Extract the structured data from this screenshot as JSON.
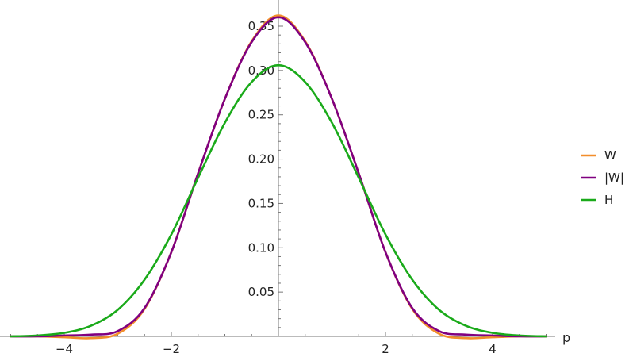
{
  "chart_data": {
    "type": "line",
    "xlabel": "p",
    "ylabel": "",
    "xlim": [
      -5,
      5
    ],
    "ylim": [
      0,
      0.37
    ],
    "x_ticks": [
      {
        "value": -4,
        "label": "−4"
      },
      {
        "value": -2,
        "label": "−2"
      },
      {
        "value": 2,
        "label": "2"
      },
      {
        "value": 4,
        "label": "4"
      }
    ],
    "y_ticks": [
      {
        "value": 0.05,
        "label": "0.05"
      },
      {
        "value": 0.1,
        "label": "0.10"
      },
      {
        "value": 0.15,
        "label": "0.15"
      },
      {
        "value": 0.2,
        "label": "0.20"
      },
      {
        "value": 0.25,
        "label": "0.25"
      },
      {
        "value": 0.3,
        "label": "0.30"
      },
      {
        "value": 0.35,
        "label": "0.35"
      }
    ],
    "x": [
      -5,
      -4.5,
      -4,
      -3.5,
      -3,
      -2.5,
      -2,
      -1.5,
      -1,
      -0.5,
      0,
      0.5,
      1,
      1.5,
      2,
      2.5,
      3,
      3.5,
      4,
      4.5,
      5
    ],
    "series": [
      {
        "name": "W",
        "color": "#f28e2b",
        "values": [
          0.0,
          0.0,
          -0.001,
          -0.002,
          0.003,
          0.031,
          0.095,
          0.184,
          0.268,
          0.333,
          0.362,
          0.333,
          0.268,
          0.184,
          0.095,
          0.031,
          0.003,
          -0.002,
          -0.001,
          0.0,
          0.0
        ]
      },
      {
        "name": "|W|",
        "color": "#800080",
        "values": [
          0.0,
          0.0,
          0.001,
          0.002,
          0.006,
          0.032,
          0.095,
          0.184,
          0.268,
          0.332,
          0.36,
          0.332,
          0.268,
          0.184,
          0.095,
          0.032,
          0.006,
          0.002,
          0.001,
          0.0,
          0.0
        ]
      },
      {
        "name": "H",
        "color": "#1aaa1a",
        "values": [
          0.0,
          0.001,
          0.004,
          0.012,
          0.03,
          0.064,
          0.115,
          0.179,
          0.241,
          0.287,
          0.306,
          0.287,
          0.241,
          0.179,
          0.115,
          0.064,
          0.03,
          0.012,
          0.004,
          0.001,
          0.0
        ]
      }
    ],
    "legend": {
      "position": "right",
      "entries": [
        {
          "label": "W",
          "color": "#f28e2b"
        },
        {
          "label": "|W|",
          "color": "#800080"
        },
        {
          "label": "H",
          "color": "#1aaa1a"
        }
      ]
    },
    "grid": false,
    "colors": {
      "axis": "#777777",
      "text": "#222222"
    }
  }
}
